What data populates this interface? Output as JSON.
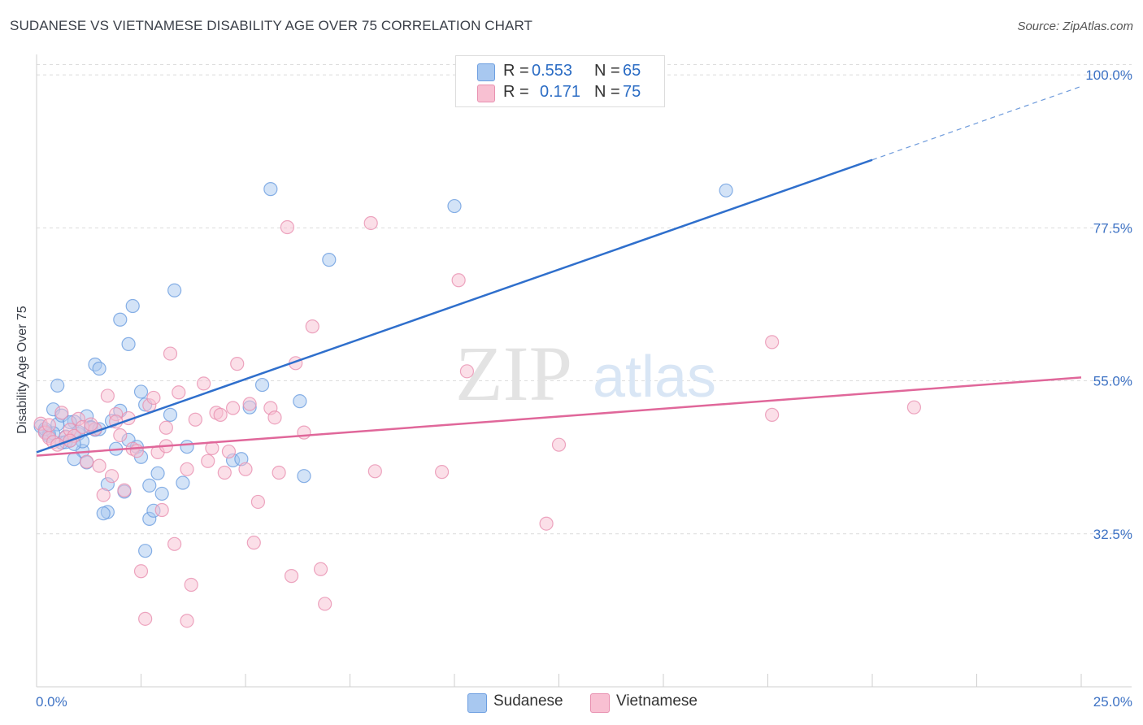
{
  "title": "SUDANESE VS VIETNAMESE DISABILITY AGE OVER 75 CORRELATION CHART",
  "source": "Source: ZipAtlas.com",
  "watermark": {
    "zip": "ZIP",
    "atlas": "atlas"
  },
  "stats": [
    {
      "r_label": "R =",
      "r_value": "0.553",
      "n_label": "N =",
      "n_value": "65",
      "color": "#a8c8f0",
      "border": "#6c9ee0"
    },
    {
      "r_label": "R =",
      "r_value": "0.171",
      "n_label": "N =",
      "n_value": "75",
      "color": "#f8c0d2",
      "border": "#e890b0"
    }
  ],
  "legend": [
    {
      "label": "Sudanese",
      "color": "#a8c8f0",
      "border": "#6c9ee0"
    },
    {
      "label": "Vietnamese",
      "color": "#f8c0d2",
      "border": "#e890b0"
    }
  ],
  "chart_data": {
    "type": "scatter",
    "xlabel": "",
    "ylabel": "Disability Age Over 75",
    "xlim": [
      0,
      25
    ],
    "ylim": [
      10,
      103
    ],
    "x_tick_labels": [
      "0.0%",
      "25.0%"
    ],
    "y_ticks": [
      32.5,
      55.0,
      77.5,
      100.0
    ],
    "y_tick_labels": [
      "32.5%",
      "55.0%",
      "77.5%",
      "100.0%"
    ],
    "grid": true,
    "series": [
      {
        "name": "Sudanese",
        "color": "#6c9ee0",
        "fill": "#a8c8f0",
        "trend": {
          "x": [
            0,
            20
          ],
          "y": [
            44.5,
            87.5
          ],
          "dash_to": {
            "x": 25,
            "y": 98.3
          },
          "color": "#2f6fcc"
        },
        "points": [
          [
            0.1,
            48.3
          ],
          [
            0.2,
            47.6
          ],
          [
            0.3,
            47.2
          ],
          [
            0.4,
            50.8
          ],
          [
            0.5,
            48.6
          ],
          [
            0.6,
            49.9
          ],
          [
            0.7,
            46.8
          ],
          [
            0.8,
            46.2
          ],
          [
            0.9,
            49.0
          ],
          [
            1.0,
            47.2
          ],
          [
            1.1,
            44.7
          ],
          [
            1.2,
            49.8
          ],
          [
            1.3,
            48.2
          ],
          [
            1.4,
            47.8
          ],
          [
            0.5,
            54.3
          ],
          [
            0.9,
            43.5
          ],
          [
            1.2,
            43.0
          ],
          [
            1.4,
            57.4
          ],
          [
            1.5,
            56.8
          ],
          [
            1.7,
            39.8
          ],
          [
            1.7,
            35.7
          ],
          [
            1.8,
            49.1
          ],
          [
            1.9,
            45.0
          ],
          [
            2.0,
            50.6
          ],
          [
            2.0,
            64.0
          ],
          [
            2.1,
            38.7
          ],
          [
            2.2,
            60.4
          ],
          [
            2.2,
            46.3
          ],
          [
            2.3,
            66.0
          ],
          [
            2.4,
            45.3
          ],
          [
            2.5,
            53.4
          ],
          [
            2.5,
            43.8
          ],
          [
            2.6,
            51.5
          ],
          [
            2.7,
            34.7
          ],
          [
            2.7,
            39.6
          ],
          [
            2.9,
            41.4
          ],
          [
            3.0,
            38.4
          ],
          [
            3.2,
            50.0
          ],
          [
            3.3,
            68.3
          ],
          [
            3.5,
            40.0
          ],
          [
            3.6,
            45.3
          ],
          [
            2.6,
            30.0
          ],
          [
            4.7,
            43.3
          ],
          [
            4.9,
            43.5
          ],
          [
            5.1,
            51.1
          ],
          [
            5.4,
            54.4
          ],
          [
            5.6,
            83.2
          ],
          [
            6.3,
            52.0
          ],
          [
            6.4,
            41.0
          ],
          [
            7.0,
            72.8
          ],
          [
            10.0,
            80.7
          ],
          [
            16.5,
            83.0
          ],
          [
            0.3,
            46.9
          ],
          [
            0.6,
            45.9
          ],
          [
            0.8,
            48.9
          ],
          [
            1.0,
            47.5
          ],
          [
            1.1,
            46.1
          ],
          [
            0.4,
            47.3
          ],
          [
            1.6,
            35.5
          ],
          [
            2.8,
            35.9
          ],
          [
            0.2,
            47.9
          ],
          [
            1.3,
            48.1
          ],
          [
            0.7,
            46.0
          ],
          [
            0.9,
            45.7
          ],
          [
            1.5,
            47.9
          ]
        ]
      },
      {
        "name": "Vietnamese",
        "color": "#e890b0",
        "fill": "#f8c0d2",
        "trend": {
          "x": [
            0,
            25
          ],
          "y": [
            44.0,
            55.5
          ],
          "color": "#e0679a"
        },
        "points": [
          [
            0.1,
            48.7
          ],
          [
            0.2,
            47.4
          ],
          [
            0.3,
            46.6
          ],
          [
            0.4,
            46.0
          ],
          [
            0.6,
            50.3
          ],
          [
            0.7,
            46.7
          ],
          [
            0.8,
            47.8
          ],
          [
            0.9,
            46.9
          ],
          [
            1.0,
            49.4
          ],
          [
            1.1,
            48.2
          ],
          [
            1.2,
            43.1
          ],
          [
            1.4,
            47.9
          ],
          [
            1.5,
            42.5
          ],
          [
            1.6,
            38.2
          ],
          [
            1.7,
            52.8
          ],
          [
            1.8,
            41.0
          ],
          [
            1.9,
            50.1
          ],
          [
            2.0,
            47.0
          ],
          [
            2.1,
            38.9
          ],
          [
            2.2,
            49.5
          ],
          [
            2.3,
            45.0
          ],
          [
            2.5,
            27.0
          ],
          [
            2.6,
            20.0
          ],
          [
            2.7,
            51.4
          ],
          [
            2.8,
            52.5
          ],
          [
            2.9,
            44.5
          ],
          [
            3.0,
            36.0
          ],
          [
            3.1,
            45.4
          ],
          [
            3.2,
            59.0
          ],
          [
            3.3,
            31.0
          ],
          [
            3.4,
            53.3
          ],
          [
            3.6,
            42.0
          ],
          [
            3.7,
            25.0
          ],
          [
            3.6,
            19.7
          ],
          [
            3.8,
            49.3
          ],
          [
            4.0,
            54.6
          ],
          [
            4.2,
            45.1
          ],
          [
            4.3,
            50.3
          ],
          [
            4.4,
            50.0
          ],
          [
            4.5,
            41.5
          ],
          [
            4.6,
            44.6
          ],
          [
            4.7,
            51.0
          ],
          [
            4.8,
            57.5
          ],
          [
            5.0,
            42.0
          ],
          [
            5.1,
            51.6
          ],
          [
            5.2,
            31.2
          ],
          [
            5.3,
            37.2
          ],
          [
            5.6,
            51.0
          ],
          [
            5.7,
            49.6
          ],
          [
            5.8,
            41.5
          ],
          [
            6.0,
            77.6
          ],
          [
            6.1,
            26.3
          ],
          [
            6.2,
            57.6
          ],
          [
            6.4,
            47.4
          ],
          [
            6.6,
            63.0
          ],
          [
            6.8,
            27.3
          ],
          [
            6.9,
            22.2
          ],
          [
            8.0,
            78.2
          ],
          [
            8.1,
            41.7
          ],
          [
            9.7,
            41.6
          ],
          [
            10.1,
            69.8
          ],
          [
            10.3,
            56.4
          ],
          [
            12.2,
            34.0
          ],
          [
            12.5,
            45.6
          ],
          [
            17.6,
            60.7
          ],
          [
            17.6,
            50.0
          ],
          [
            21.0,
            51.1
          ],
          [
            0.5,
            45.6
          ],
          [
            1.3,
            48.6
          ],
          [
            2.4,
            44.7
          ],
          [
            0.3,
            48.5
          ],
          [
            0.8,
            46.2
          ],
          [
            1.9,
            49.0
          ],
          [
            3.1,
            48.1
          ],
          [
            4.1,
            43.2
          ]
        ]
      }
    ]
  }
}
